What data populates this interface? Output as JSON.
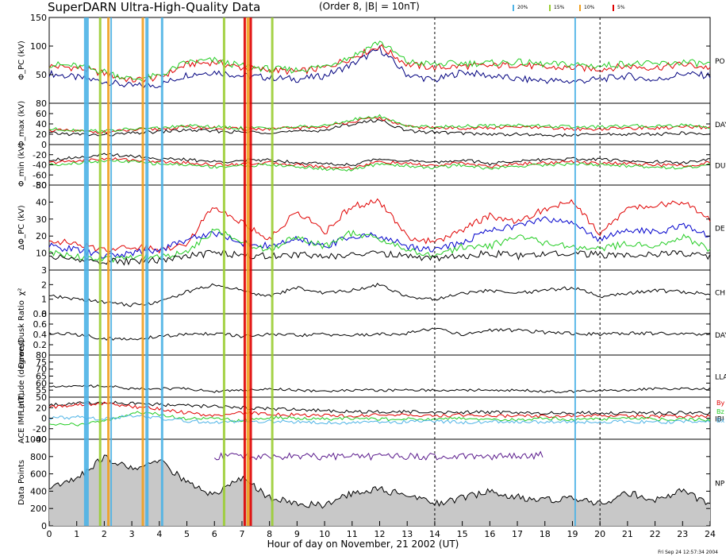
{
  "header": {
    "title": "SuperDARN Ultra-High-Quality Data",
    "subtitle": "(Order 8, |B| = 10nT)",
    "legend": [
      {
        "label": "20%",
        "color": "#4db3e6"
      },
      {
        "label": "15%",
        "color": "#9acd32"
      },
      {
        "label": "10%",
        "color": "#f0a020"
      },
      {
        "label": "5%",
        "color": "#e00000"
      }
    ],
    "timestamp": "Fri Sep 24 12:57:34 2004"
  },
  "chart_data": {
    "type": "line",
    "xlabel": "Hour of day on November, 21 2002 (UT)",
    "xlim": [
      0,
      24
    ],
    "xticks": [
      "0",
      "1",
      "2",
      "3",
      "4",
      "5",
      "6",
      "7",
      "8",
      "9",
      "10",
      "11",
      "12",
      "13",
      "14",
      "15",
      "16",
      "17",
      "18",
      "19",
      "20",
      "21",
      "22",
      "23",
      "24"
    ],
    "dashed_verticals_hours": [
      14.0,
      20.0
    ],
    "event_lines": [
      {
        "hour": 1.35,
        "color": "#4db3e6",
        "width": 6
      },
      {
        "hour": 1.85,
        "color": "#9acd32",
        "width": 3
      },
      {
        "hour": 2.15,
        "color": "#f0a020",
        "width": 3
      },
      {
        "hour": 2.25,
        "color": "#4db3e6",
        "width": 2
      },
      {
        "hour": 3.4,
        "color": "#f0a020",
        "width": 3
      },
      {
        "hour": 3.55,
        "color": "#4db3e6",
        "width": 4
      },
      {
        "hour": 4.1,
        "color": "#4db3e6",
        "width": 3
      },
      {
        "hour": 6.35,
        "color": "#9acd32",
        "width": 3
      },
      {
        "hour": 7.1,
        "color": "#e00000",
        "width": 3
      },
      {
        "hour": 7.22,
        "color": "#f0a020",
        "width": 4
      },
      {
        "hour": 7.32,
        "color": "#e00000",
        "width": 3
      },
      {
        "hour": 8.1,
        "color": "#9acd32",
        "width": 3
      },
      {
        "hour": 19.1,
        "color": "#4db3e6",
        "width": 2
      }
    ],
    "panels": [
      {
        "id": "phipc",
        "ylabel": "Φ_PC (kV)",
        "ylim": [
          0,
          150
        ],
        "yticks": [
          50,
          100,
          150
        ],
        "right_label": "PO",
        "series": [
          {
            "color": "#00007f",
            "values": [
              52,
              45,
              38,
              30,
              32,
              50,
              55,
              48,
              45,
              42,
              48,
              68,
              95,
              50,
              40,
              55,
              48,
              42,
              40,
              38,
              42,
              48,
              40,
              52,
              48
            ]
          },
          {
            "color": "#e00000",
            "values": [
              65,
              62,
              52,
              40,
              45,
              68,
              72,
              62,
              58,
              55,
              62,
              80,
              100,
              68,
              62,
              65,
              65,
              68,
              62,
              62,
              60,
              65,
              62,
              68,
              62
            ]
          },
          {
            "color": "#22cc22",
            "values": [
              68,
              65,
              55,
              42,
              48,
              72,
              75,
              65,
              60,
              58,
              65,
              82,
              108,
              72,
              68,
              70,
              70,
              72,
              68,
              68,
              65,
              70,
              68,
              72,
              68
            ]
          }
        ]
      },
      {
        "id": "phimax",
        "ylabel": "Φ_max (kV)",
        "ylim": [
          0,
          80
        ],
        "yticks": [
          20,
          40,
          60,
          80
        ],
        "right_label": "DAY",
        "series": [
          {
            "color": "#000000",
            "values": [
              22,
              20,
              18,
              22,
              25,
              28,
              26,
              24,
              24,
              25,
              28,
              40,
              48,
              26,
              24,
              22,
              20,
              20,
              18,
              18,
              20,
              20,
              20,
              22,
              20
            ]
          },
          {
            "color": "#e00000",
            "values": [
              28,
              26,
              24,
              28,
              30,
              34,
              32,
              30,
              30,
              32,
              34,
              45,
              52,
              34,
              32,
              32,
              32,
              34,
              32,
              30,
              30,
              32,
              32,
              34,
              32
            ]
          },
          {
            "color": "#22cc22",
            "values": [
              30,
              28,
              26,
              30,
              32,
              36,
              34,
              32,
              32,
              34,
              36,
              48,
              55,
              36,
              34,
              36,
              36,
              38,
              36,
              34,
              34,
              36,
              36,
              38,
              34
            ]
          }
        ]
      },
      {
        "id": "phimin",
        "ylabel": "Φ_min (kV)",
        "ylim": [
          -80,
          0
        ],
        "yticks": [
          -80,
          -60,
          -40,
          -20,
          0
        ],
        "right_label": "DU",
        "series": [
          {
            "color": "#000000",
            "values": [
              -30,
              -25,
              -20,
              -22,
              -28,
              -30,
              -34,
              -32,
              -30,
              -35,
              -38,
              -40,
              -28,
              -32,
              -36,
              -30,
              -38,
              -32,
              -30,
              -28,
              -30,
              -32,
              -34,
              -36,
              -30
            ]
          },
          {
            "color": "#e00000",
            "values": [
              -36,
              -32,
              -28,
              -30,
              -34,
              -36,
              -40,
              -38,
              -36,
              -40,
              -44,
              -46,
              -34,
              -38,
              -42,
              -36,
              -44,
              -38,
              -36,
              -34,
              -36,
              -38,
              -40,
              -42,
              -36
            ]
          },
          {
            "color": "#22cc22",
            "values": [
              -40,
              -36,
              -32,
              -34,
              -38,
              -40,
              -44,
              -42,
              -40,
              -44,
              -48,
              -50,
              -38,
              -42,
              -46,
              -40,
              -48,
              -42,
              -40,
              -38,
              -40,
              -42,
              -44,
              -46,
              -40
            ]
          }
        ]
      },
      {
        "id": "dphipc",
        "ylabel": "ΔΦ_PC (kV)",
        "ylim": [
          0,
          50
        ],
        "yticks": [
          10,
          20,
          30,
          40,
          50
        ],
        "right_label": "DE",
        "series": [
          {
            "color": "#e00000",
            "values": [
              18,
              15,
              12,
              14,
              12,
              16,
              38,
              28,
              18,
              35,
              22,
              38,
              40,
              20,
              16,
              24,
              32,
              28,
              36,
              40,
              22,
              36,
              38,
              40,
              30
            ]
          },
          {
            "color": "#0000cc",
            "values": [
              14,
              12,
              8,
              10,
              12,
              18,
              22,
              16,
              14,
              18,
              14,
              20,
              20,
              14,
              12,
              16,
              24,
              26,
              30,
              28,
              18,
              24,
              22,
              26,
              20
            ]
          },
          {
            "color": "#22cc22",
            "values": [
              10,
              8,
              6,
              8,
              8,
              10,
              24,
              16,
              12,
              20,
              14,
              22,
              18,
              12,
              8,
              14,
              14,
              20,
              16,
              14,
              12,
              16,
              14,
              20,
              12
            ]
          },
          {
            "color": "#000000",
            "values": [
              8,
              6,
              5,
              5,
              6,
              8,
              10,
              9,
              8,
              9,
              8,
              9,
              10,
              8,
              7,
              8,
              10,
              8,
              9,
              10,
              9,
              8,
              9,
              10,
              8
            ]
          }
        ]
      },
      {
        "id": "chi",
        "ylabel": "χ²",
        "ylim": [
          0,
          3
        ],
        "yticks": [
          0,
          1,
          2,
          3
        ],
        "right_label": "CH",
        "series": [
          {
            "color": "#000000",
            "values": [
              1.2,
              1.0,
              0.8,
              0.6,
              0.8,
              1.5,
              2.0,
              1.6,
              1.2,
              1.8,
              1.4,
              1.6,
              2.0,
              1.2,
              1.0,
              1.4,
              1.6,
              1.4,
              1.6,
              1.8,
              1.2,
              1.4,
              1.6,
              1.5,
              1.4
            ]
          }
        ]
      },
      {
        "id": "ratio",
        "ylabel": "Dawn/Dusk Ratio",
        "ylim": [
          0,
          0.8
        ],
        "yticks": [
          0.2,
          0.4,
          0.6,
          0.8
        ],
        "right_label": "DAY",
        "series": [
          {
            "color": "#000000",
            "values": [
              0.42,
              0.4,
              0.32,
              0.3,
              0.36,
              0.4,
              0.42,
              0.36,
              0.4,
              0.38,
              0.4,
              0.38,
              0.4,
              0.42,
              0.52,
              0.4,
              0.48,
              0.48,
              0.44,
              0.42,
              0.4,
              0.42,
              0.42,
              0.4,
              0.42
            ]
          }
        ]
      },
      {
        "id": "lat",
        "ylabel": "Latitude (degrees)",
        "ylim": [
          50,
          80
        ],
        "yticks": [
          50,
          55,
          60,
          65,
          70,
          75,
          80
        ],
        "right_label": "LLA",
        "series": [
          {
            "color": "#000000",
            "values": [
              58,
              58,
              58,
              56,
              56,
              56,
              54,
              55,
              56,
              55,
              54,
              55,
              55,
              55,
              55,
              55,
              55,
              55,
              54,
              54,
              55,
              55,
              56,
              56,
              56
            ]
          }
        ]
      },
      {
        "id": "imf",
        "ylabel": "ACE IMF (nT)",
        "ylim": [
          -40,
          40
        ],
        "yticks": [
          -40,
          -20,
          0,
          20
        ],
        "right_label": "IBI",
        "right_legend": [
          "By",
          "Bz",
          "Bx"
        ],
        "series": [
          {
            "color": "#000000",
            "values": [
              25,
              28,
              30,
              28,
              26,
              24,
              22,
              20,
              18,
              16,
              14,
              12,
              12,
              12,
              12,
              11,
              11,
              10,
              10,
              10,
              10,
              10,
              10,
              10,
              10
            ]
          },
          {
            "color": "#e00000",
            "values": [
              20,
              25,
              28,
              22,
              18,
              10,
              5,
              10,
              8,
              6,
              5,
              4,
              6,
              6,
              5,
              6,
              4,
              5,
              3,
              4,
              5,
              4,
              3,
              4,
              3
            ]
          },
          {
            "color": "#22cc22",
            "values": [
              -10,
              -12,
              -5,
              10,
              8,
              -2,
              0,
              -5,
              2,
              0,
              -2,
              0,
              -2,
              -2,
              -2,
              0,
              -2,
              -3,
              0,
              -2,
              -2,
              0,
              -2,
              -2,
              -3
            ]
          },
          {
            "color": "#4db3e6",
            "values": [
              0,
              2,
              -2,
              5,
              0,
              -5,
              -8,
              -5,
              -6,
              -7,
              -8,
              -9,
              -8,
              -7,
              -6,
              -8,
              -7,
              -6,
              -7,
              -8,
              -7,
              -6,
              -8,
              -6,
              -6
            ]
          }
        ]
      },
      {
        "id": "dp",
        "ylabel": "Data Points",
        "ylim": [
          0,
          1000
        ],
        "yticks": [
          0,
          200,
          400,
          600,
          800,
          1000
        ],
        "right_label": "NP",
        "series": [
          {
            "color": "#000000",
            "fill": "#c8c8c8",
            "values": [
              450,
              550,
              800,
              650,
              750,
              500,
              350,
              550,
              320,
              260,
              240,
              380,
              420,
              350,
              260,
              320,
              400,
              330,
              300,
              320,
              250,
              380,
              300,
              400,
              250
            ]
          },
          {
            "color": "#5a1a8c",
            "values": [
              null,
              null,
              null,
              null,
              null,
              null,
              800,
              800,
              800,
              800,
              800,
              800,
              800,
              800,
              800,
              800,
              800,
              800,
              820,
              null,
              null,
              null,
              null,
              null,
              null
            ]
          }
        ]
      }
    ]
  }
}
